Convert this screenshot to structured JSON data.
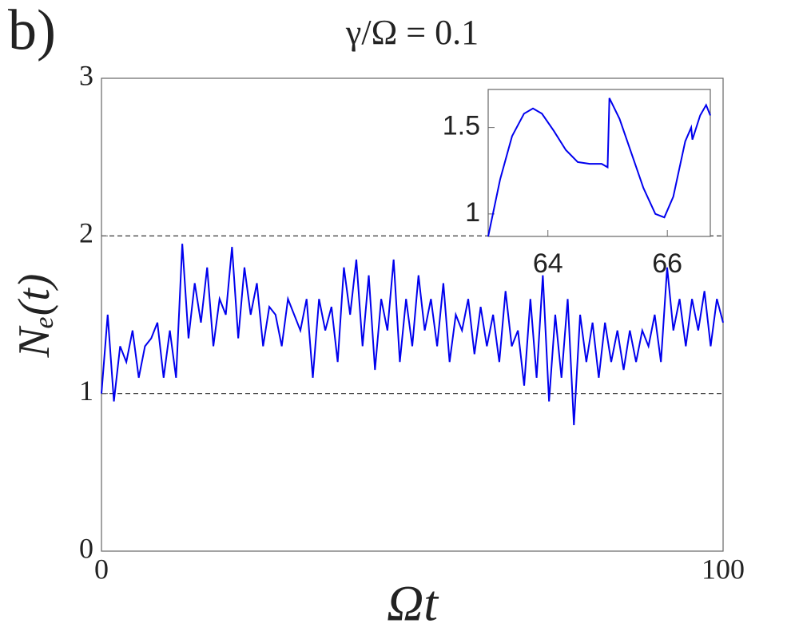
{
  "chart_data": [
    {
      "type": "line",
      "panel_label": "b)",
      "title": "γ/Ω = 0.1",
      "x_label": "Ωt",
      "y_label": "Nₑ(t)",
      "xlim": [
        0,
        100
      ],
      "ylim": [
        0,
        3
      ],
      "xticks": [
        0,
        100
      ],
      "yticks": [
        0,
        1,
        2,
        3
      ],
      "hlines": [
        1,
        2
      ],
      "series": [
        {
          "color": "#0000ee",
          "x": [
            0,
            1,
            2,
            3,
            4,
            5,
            6,
            7,
            8,
            9,
            10,
            11,
            12,
            13,
            14,
            15,
            16,
            17,
            18,
            19,
            20,
            21,
            22,
            23,
            24,
            25,
            26,
            27,
            28,
            29,
            30,
            31,
            32,
            33,
            34,
            35,
            36,
            37,
            38,
            39,
            40,
            41,
            42,
            43,
            44,
            45,
            46,
            47,
            48,
            49,
            50,
            51,
            52,
            53,
            54,
            55,
            56,
            57,
            58,
            59,
            60,
            61,
            62,
            63,
            64,
            65,
            66,
            67,
            68,
            69,
            70,
            71,
            72,
            73,
            74,
            75,
            76,
            77,
            78,
            79,
            80,
            81,
            82,
            83,
            84,
            85,
            86,
            87,
            88,
            89,
            90,
            91,
            92,
            93,
            94,
            95,
            96,
            97,
            98,
            99,
            100
          ],
          "values": [
            1.0,
            1.5,
            0.95,
            1.3,
            1.2,
            1.4,
            1.1,
            1.3,
            1.35,
            1.45,
            1.1,
            1.4,
            1.1,
            1.95,
            1.35,
            1.7,
            1.45,
            1.8,
            1.3,
            1.6,
            1.5,
            1.93,
            1.35,
            1.8,
            1.5,
            1.7,
            1.3,
            1.55,
            1.5,
            1.3,
            1.6,
            1.5,
            1.4,
            1.6,
            1.1,
            1.6,
            1.4,
            1.55,
            1.2,
            1.8,
            1.5,
            1.85,
            1.3,
            1.75,
            1.15,
            1.6,
            1.4,
            1.85,
            1.2,
            1.6,
            1.3,
            1.75,
            1.4,
            1.6,
            1.3,
            1.7,
            1.2,
            1.5,
            1.4,
            1.6,
            1.25,
            1.55,
            1.3,
            1.5,
            1.2,
            1.65,
            1.3,
            1.4,
            1.05,
            1.6,
            1.1,
            1.75,
            0.95,
            1.5,
            1.1,
            1.6,
            0.8,
            1.5,
            1.2,
            1.45,
            1.1,
            1.45,
            1.2,
            1.4,
            1.15,
            1.4,
            1.2,
            1.4,
            1.3,
            1.5,
            1.2,
            1.8,
            1.4,
            1.6,
            1.3,
            1.6,
            1.4,
            1.65,
            1.3,
            1.6,
            1.45
          ]
        }
      ]
    },
    {
      "type": "line",
      "xlim": [
        63,
        66.72
      ],
      "ylim": [
        0.87,
        1.72
      ],
      "xticks": [
        64,
        66
      ],
      "yticks": [
        1,
        1.5
      ],
      "series": [
        {
          "color": "#0000ee",
          "x": [
            63,
            63.2,
            63.4,
            63.6,
            63.75,
            63.9,
            64.1,
            64.3,
            64.5,
            64.7,
            64.9,
            65.0,
            65.03,
            65.2,
            65.4,
            65.6,
            65.8,
            65.95,
            66.1,
            66.3,
            66.4,
            66.42,
            66.55,
            66.65,
            66.72
          ],
          "values": [
            0.87,
            1.2,
            1.45,
            1.58,
            1.61,
            1.58,
            1.48,
            1.37,
            1.3,
            1.29,
            1.29,
            1.27,
            1.67,
            1.55,
            1.35,
            1.15,
            1.0,
            0.98,
            1.1,
            1.42,
            1.5,
            1.43,
            1.57,
            1.63,
            1.57
          ]
        }
      ]
    }
  ]
}
